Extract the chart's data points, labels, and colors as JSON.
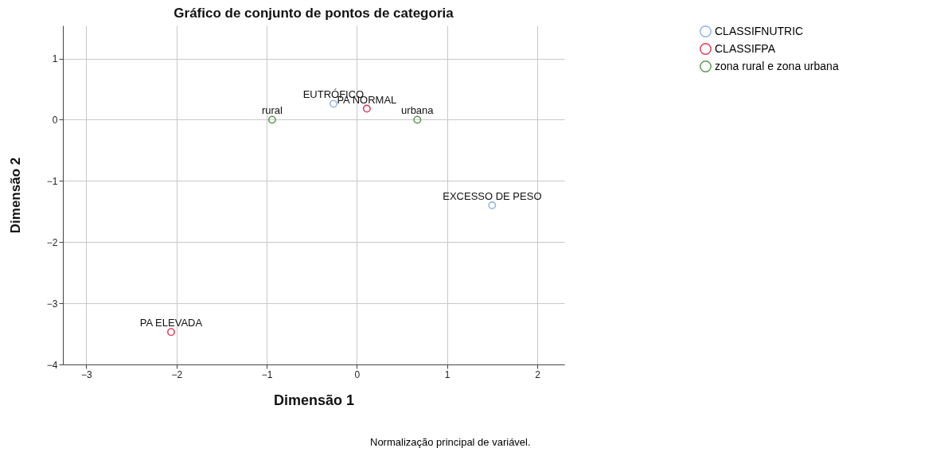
{
  "chart_data": {
    "type": "scatter",
    "title": "Gráfico de conjunto de pontos de categoria",
    "xlabel": "Dimensão 1",
    "ylabel": "Dimensão 2",
    "xlim": [
      -3.26,
      2.3
    ],
    "ylim": [
      -4,
      1.54
    ],
    "xticks": [
      -3,
      -2,
      -1,
      0,
      1,
      2
    ],
    "yticks": [
      -4,
      -3,
      -2,
      -1,
      0,
      1
    ],
    "grid": true,
    "legend": "top right",
    "marker": "circle",
    "series": [
      {
        "name": "CLASSIFNUTRIC",
        "color": "#8fb8e8",
        "x": [
          -0.26,
          1.5
        ],
        "values": [
          0.26,
          -1.4
        ],
        "value_labels": [
          "EUTRÓFICO",
          "EXCESSO DE PESO"
        ]
      },
      {
        "name": "CLASSIFPA",
        "color": "#e0405e",
        "x": [
          0.11,
          -2.06
        ],
        "values": [
          0.18,
          -3.47
        ],
        "value_labels": [
          "PA NORMAL",
          "PA ELEVADA"
        ]
      },
      {
        "name": "zona rural e zona urbana",
        "color": "#5a9e50",
        "x": [
          -0.94,
          0.67
        ],
        "values": [
          0.0,
          0.0
        ],
        "value_labels": [
          "rural",
          "urbana"
        ]
      }
    ],
    "annotations": [
      "Normalização principal de variável."
    ]
  }
}
